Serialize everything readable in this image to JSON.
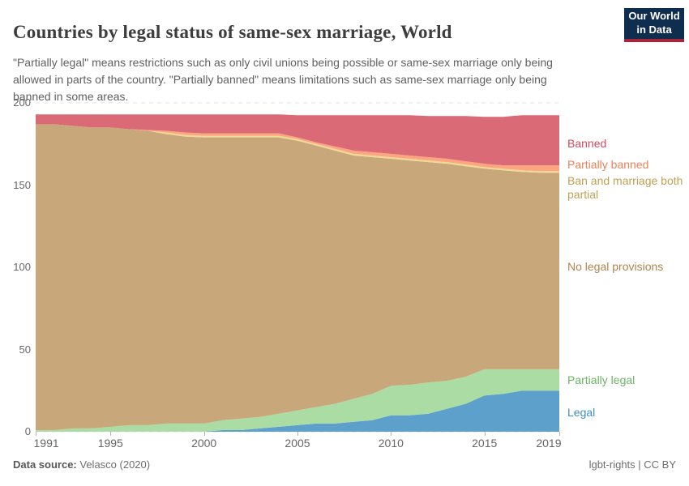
{
  "header": {
    "title": "Countries by legal status of same-sex marriage, World",
    "subtitle": "\"Partially legal\" means restrictions such as only civil unions being possible or same-sex marriage only being allowed in parts of the country. \"Partially banned\" means limitations such as same-sex marriage only being banned in some areas.",
    "logo": {
      "line1": "Our World",
      "line2": "in Data",
      "bg_color": "#0f2d4e",
      "stripe_color": "#a52639"
    }
  },
  "footer": {
    "source_label": "Data source:",
    "source_value": "Velasco (2020)",
    "note": "lgbt-rights | CC BY"
  },
  "chart_data": {
    "type": "area",
    "stacked": true,
    "title": "Countries by legal status of same-sex marriage, World",
    "xlabel": "",
    "ylabel": "",
    "ylim": [
      0,
      200
    ],
    "grid": "horizontal-dashed",
    "legend_position": "right-edge series labels",
    "x": [
      1991,
      1992,
      1993,
      1994,
      1995,
      1996,
      1997,
      1998,
      1999,
      2000,
      2001,
      2002,
      2003,
      2004,
      2005,
      2006,
      2007,
      2008,
      2009,
      2010,
      2011,
      2012,
      2013,
      2014,
      2015,
      2016,
      2017,
      2018,
      2019
    ],
    "x_ticks": [
      1991,
      1995,
      2000,
      2005,
      2010,
      2015,
      2019
    ],
    "y_ticks": [
      0,
      50,
      100,
      150,
      200
    ],
    "series": [
      {
        "id": "legal",
        "name": "Legal",
        "fill": "#5da0cc",
        "label_color": "#3e8fc4",
        "values": [
          0,
          0,
          0,
          0,
          0,
          0,
          0,
          0,
          0,
          0,
          1,
          1,
          2,
          3,
          4,
          5,
          5,
          6,
          7,
          10,
          10,
          11,
          14,
          17,
          22,
          23,
          25,
          25,
          25
        ]
      },
      {
        "id": "partially_legal",
        "name": "Partially legal",
        "fill": "#aadca4",
        "label_color": "#6cb567",
        "values": [
          1,
          1,
          2,
          2,
          3,
          4,
          4,
          5,
          5,
          5,
          6,
          7,
          7,
          8,
          9,
          10,
          12,
          14,
          16,
          18,
          18.5,
          19,
          17,
          16.5,
          16,
          15,
          13,
          13,
          13
        ]
      },
      {
        "id": "no_legal_provisions",
        "name": "No legal provisions",
        "fill": "#c8a87b",
        "label_color": "#b3834e",
        "values": [
          186,
          186,
          184,
          183,
          182,
          180,
          179,
          176,
          174.5,
          174,
          172,
          171,
          170,
          168,
          164,
          159,
          154,
          148,
          144,
          138,
          136.5,
          134,
          132,
          128,
          122,
          121,
          120,
          119.5,
          119.5
        ]
      },
      {
        "id": "ban_marriage_both_partial",
        "name": "Ban and marriage both partial",
        "fill": "#eed996",
        "label_color": "#bfa153",
        "values": [
          0,
          0,
          0,
          0,
          0,
          0,
          0,
          1,
          1,
          1,
          1,
          1,
          1,
          1,
          1,
          1,
          1,
          1,
          1,
          1,
          1,
          1,
          1,
          1,
          1,
          1,
          1,
          1,
          1
        ]
      },
      {
        "id": "partially_banned",
        "name": "Partially banned",
        "fill": "#fca57e",
        "label_color": "#e8825a",
        "values": [
          0,
          0,
          0,
          0,
          0,
          0,
          0.5,
          1,
          1.5,
          1.5,
          1.5,
          1.5,
          1.5,
          1.5,
          1,
          1,
          1.5,
          2,
          2,
          2,
          2,
          2,
          2,
          2,
          2,
          2,
          3,
          3.5,
          3.5
        ]
      },
      {
        "id": "banned",
        "name": "Banned",
        "fill": "#da6a76",
        "label_color": "#d14a5e",
        "values": [
          6,
          6,
          7,
          8,
          8,
          9,
          9.5,
          10,
          11,
          11.5,
          11.5,
          11.5,
          11.5,
          11.5,
          13.5,
          16.5,
          19,
          21.5,
          22.5,
          23.5,
          24.5,
          25,
          26,
          27.5,
          28.5,
          29.5,
          30.5,
          30.5,
          30.5
        ]
      }
    ]
  }
}
